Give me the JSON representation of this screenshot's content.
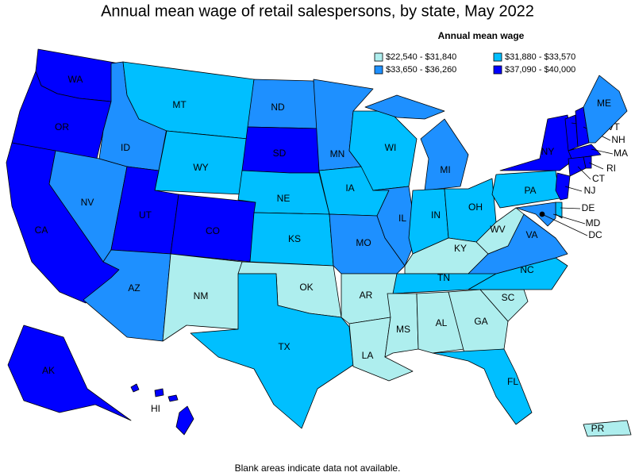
{
  "title": "Annual mean wage of retail salespersons, by state, May 2022",
  "legend": {
    "title": "Annual mean wage",
    "bins": [
      {
        "label": "$22,540 - $31,840",
        "color": "#aeeeee"
      },
      {
        "label": "$31,880 - $33,570",
        "color": "#00bfff"
      },
      {
        "label": "$33,650 - $36,260",
        "color": "#1e90ff"
      },
      {
        "label": "$37,090 - $40,000",
        "color": "#0000ff"
      }
    ]
  },
  "states": [
    {
      "abbr": "WA",
      "color": "#0000ff"
    },
    {
      "abbr": "OR",
      "color": "#0000ff"
    },
    {
      "abbr": "CA",
      "color": "#0000ff"
    },
    {
      "abbr": "NV",
      "color": "#1e90ff"
    },
    {
      "abbr": "ID",
      "color": "#1e90ff"
    },
    {
      "abbr": "MT",
      "color": "#00bfff"
    },
    {
      "abbr": "WY",
      "color": "#00bfff"
    },
    {
      "abbr": "UT",
      "color": "#0000ff"
    },
    {
      "abbr": "CO",
      "color": "#0000ff"
    },
    {
      "abbr": "AZ",
      "color": "#1e90ff"
    },
    {
      "abbr": "NM",
      "color": "#aeeeee"
    },
    {
      "abbr": "ND",
      "color": "#1e90ff"
    },
    {
      "abbr": "SD",
      "color": "#0000ff"
    },
    {
      "abbr": "NE",
      "color": "#00bfff"
    },
    {
      "abbr": "KS",
      "color": "#00bfff"
    },
    {
      "abbr": "OK",
      "color": "#aeeeee"
    },
    {
      "abbr": "TX",
      "color": "#00bfff"
    },
    {
      "abbr": "MN",
      "color": "#1e90ff"
    },
    {
      "abbr": "IA",
      "color": "#00bfff"
    },
    {
      "abbr": "MO",
      "color": "#1e90ff"
    },
    {
      "abbr": "AR",
      "color": "#aeeeee"
    },
    {
      "abbr": "LA",
      "color": "#aeeeee"
    },
    {
      "abbr": "WI",
      "color": "#00bfff"
    },
    {
      "abbr": "IL",
      "color": "#1e90ff"
    },
    {
      "abbr": "MI",
      "color": "#1e90ff"
    },
    {
      "abbr": "IN",
      "color": "#00bfff"
    },
    {
      "abbr": "OH",
      "color": "#00bfff"
    },
    {
      "abbr": "KY",
      "color": "#aeeeee"
    },
    {
      "abbr": "TN",
      "color": "#00bfff"
    },
    {
      "abbr": "MS",
      "color": "#aeeeee"
    },
    {
      "abbr": "AL",
      "color": "#aeeeee"
    },
    {
      "abbr": "GA",
      "color": "#aeeeee"
    },
    {
      "abbr": "FL",
      "color": "#00bfff"
    },
    {
      "abbr": "SC",
      "color": "#aeeeee"
    },
    {
      "abbr": "NC",
      "color": "#00bfff"
    },
    {
      "abbr": "VA",
      "color": "#1e90ff"
    },
    {
      "abbr": "WV",
      "color": "#aeeeee"
    },
    {
      "abbr": "PA",
      "color": "#00bfff"
    },
    {
      "abbr": "NY",
      "color": "#0000ff"
    },
    {
      "abbr": "NJ",
      "color": "#0000ff"
    },
    {
      "abbr": "DE",
      "color": "#00bfff"
    },
    {
      "abbr": "MD",
      "color": "#1e90ff"
    },
    {
      "abbr": "DC",
      "color": "#000000"
    },
    {
      "abbr": "VT",
      "color": "#0000ff"
    },
    {
      "abbr": "NH",
      "color": "#0000ff"
    },
    {
      "abbr": "ME",
      "color": "#1e90ff"
    },
    {
      "abbr": "MA",
      "color": "#0000ff"
    },
    {
      "abbr": "RI",
      "color": "#0000ff"
    },
    {
      "abbr": "CT",
      "color": "#0000ff"
    },
    {
      "abbr": "AK",
      "color": "#0000ff"
    },
    {
      "abbr": "HI",
      "color": "#0000ff"
    },
    {
      "abbr": "PR",
      "color": "#aeeeee"
    }
  ],
  "footnote": "Blank areas indicate data not available."
}
